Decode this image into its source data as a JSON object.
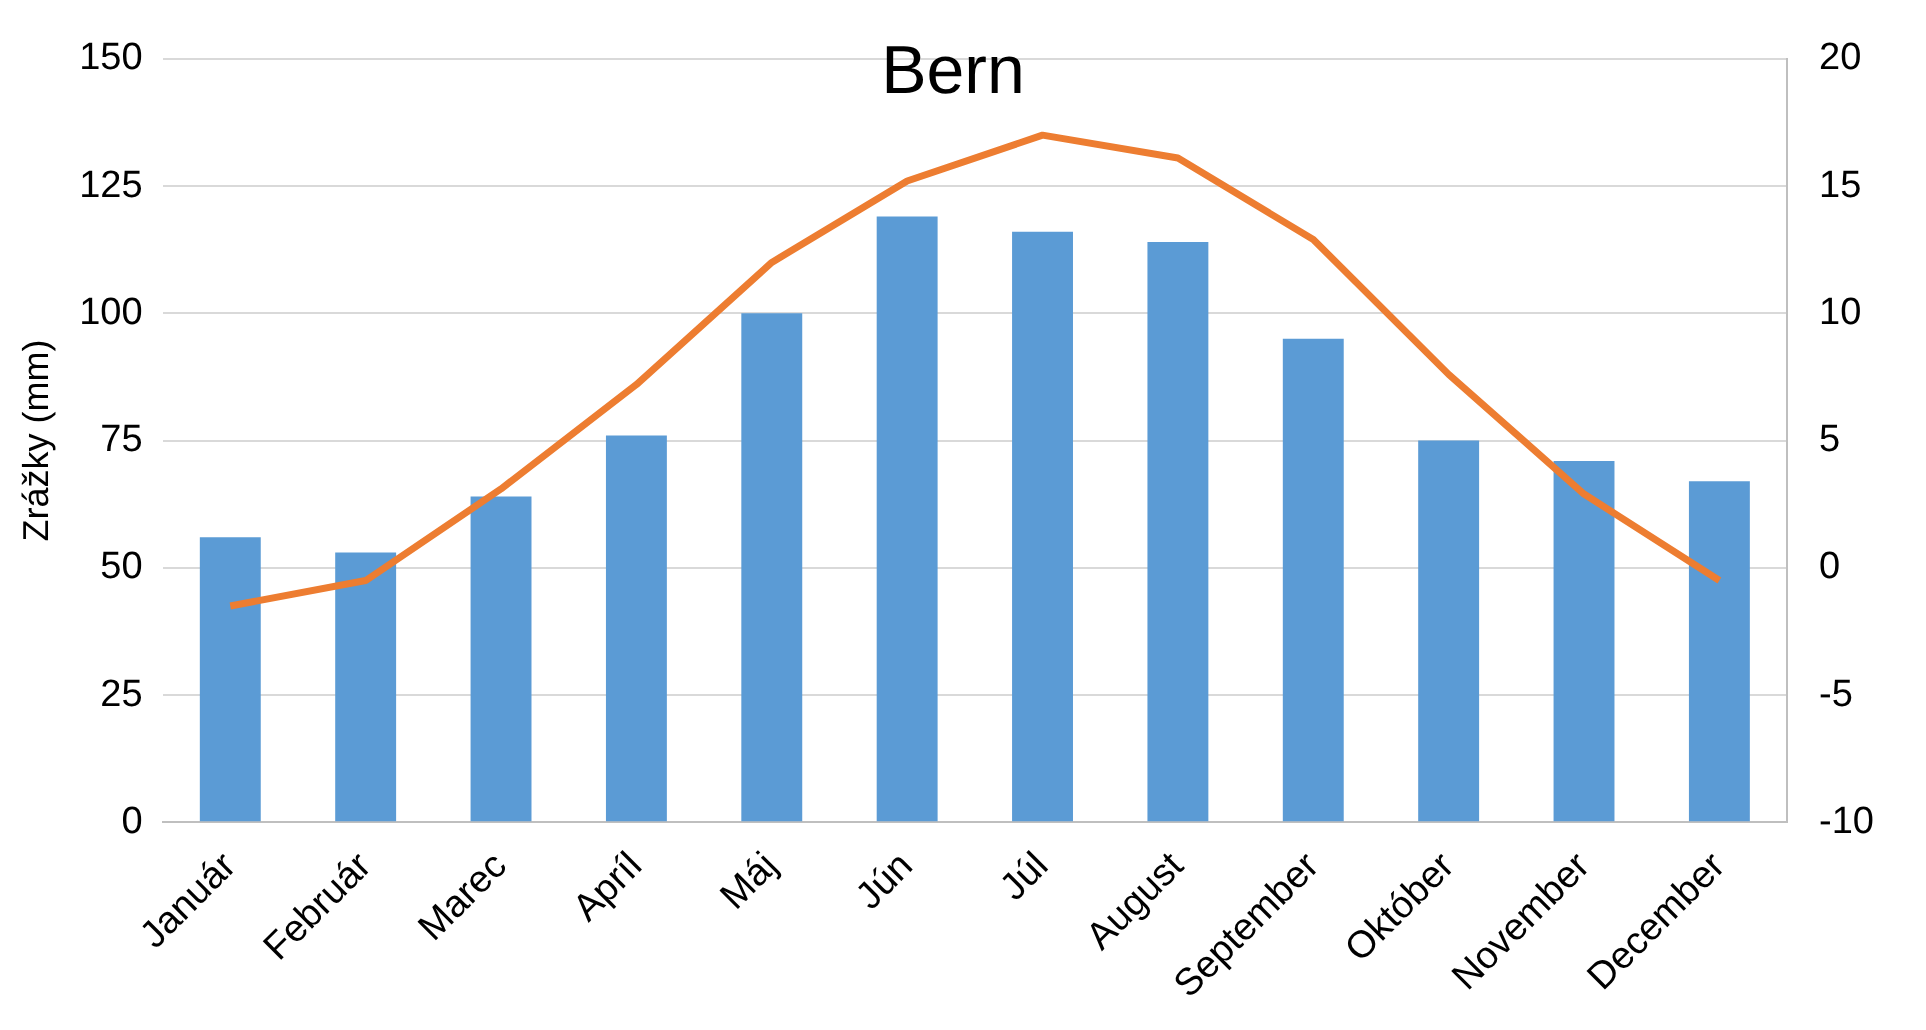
{
  "chart_data": {
    "type": "bar",
    "title": "Bern",
    "ylabel": "Zrážky (mm)",
    "categories": [
      "Január",
      "Február",
      "Marec",
      "Apríl",
      "Máj",
      "Jún",
      "Júl",
      "August",
      "September",
      "Október",
      "November",
      "December"
    ],
    "series": [
      {
        "color": "#5b9bd5",
        "values": [
          56,
          53,
          64,
          76,
          100,
          119,
          116,
          114,
          95,
          75,
          71,
          67
        ]
      },
      {
        "type": "line",
        "axis": "y2",
        "color": "#ed7d31",
        "marker": "none",
        "values": [
          -1.5,
          -0.5,
          3.1,
          7.2,
          12,
          15.2,
          17,
          16.1,
          12.9,
          7.6,
          2.9,
          -0.5
        ]
      }
    ],
    "ylim": [
      0,
      150
    ],
    "yticks": [
      0,
      25,
      50,
      75,
      100,
      125,
      150
    ],
    "y2lim": [
      -10,
      20
    ],
    "y2ticks": [
      -10,
      -5,
      0,
      5,
      10,
      15,
      20
    ],
    "grid": "y",
    "legend": false
  }
}
